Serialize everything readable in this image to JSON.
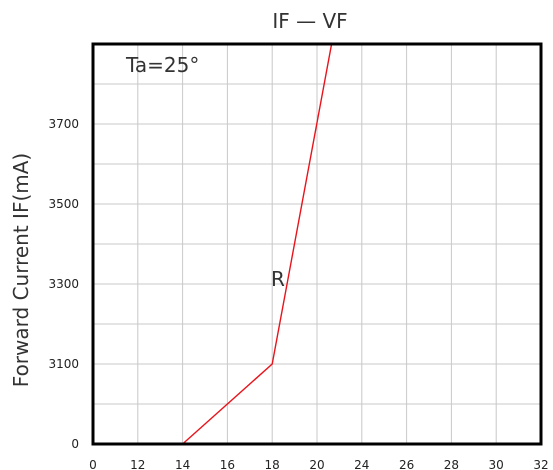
{
  "chart_data": {
    "type": "line",
    "title": "IF — VF",
    "xlabel": "",
    "ylabel": "Forward Current IF(mA)",
    "annotation": "Ta=25°",
    "x_ticks": [
      "0",
      "12",
      "14",
      "16",
      "18",
      "20",
      "24",
      "26",
      "28",
      "30",
      "32"
    ],
    "y_ticks": [
      "0",
      "3100",
      "3300",
      "3500",
      "3700"
    ],
    "grid": true,
    "series": [
      {
        "name": "R",
        "color": "#e8141c",
        "points": [
          {
            "x": 14,
            "y": 0
          },
          {
            "x": 18,
            "y": 3100
          },
          {
            "x": 21.3,
            "y": 3900
          }
        ]
      }
    ],
    "axis_color": "#000000",
    "grid_color": "#c8c8c8"
  }
}
